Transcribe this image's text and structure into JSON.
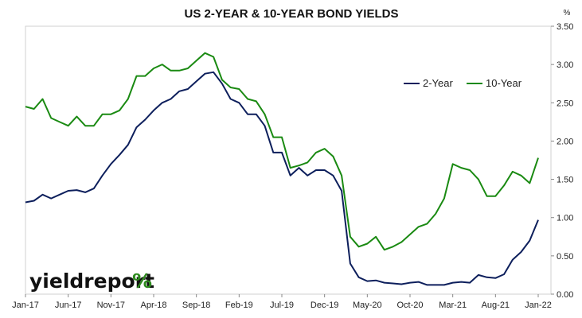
{
  "chart_data": {
    "type": "line",
    "title": "US 2-YEAR & 10-YEAR BOND YIELDS",
    "y_unit": "%",
    "ylim": [
      0,
      3.5
    ],
    "y_ticks": [
      "0.00",
      "0.50",
      "1.00",
      "1.50",
      "2.00",
      "2.50",
      "3.00",
      "3.50"
    ],
    "y_axis_side": "right",
    "grid": false,
    "legend_placement": "top-right",
    "x_ticks": [
      "Jan-17",
      "Jun-17",
      "Nov-17",
      "Apr-18",
      "Sep-18",
      "Feb-19",
      "Jul-19",
      "Dec-19",
      "May-20",
      "Oct-20",
      "Mar-21",
      "Aug-21",
      "Jan-22"
    ],
    "x": [
      "2017-01-01",
      "2017-02-01",
      "2017-03-01",
      "2017-04-01",
      "2017-05-01",
      "2017-06-01",
      "2017-07-01",
      "2017-08-01",
      "2017-09-01",
      "2017-10-01",
      "2017-11-01",
      "2017-12-01",
      "2018-01-01",
      "2018-02-01",
      "2018-03-01",
      "2018-04-01",
      "2018-05-01",
      "2018-06-01",
      "2018-07-01",
      "2018-08-01",
      "2018-09-01",
      "2018-10-01",
      "2018-11-01",
      "2018-12-01",
      "2019-01-01",
      "2019-02-01",
      "2019-03-01",
      "2019-04-01",
      "2019-05-01",
      "2019-06-01",
      "2019-07-01",
      "2019-08-01",
      "2019-09-01",
      "2019-10-01",
      "2019-11-01",
      "2019-12-01",
      "2020-01-01",
      "2020-02-01",
      "2020-03-01",
      "2020-04-01",
      "2020-05-01",
      "2020-06-01",
      "2020-07-01",
      "2020-08-01",
      "2020-09-01",
      "2020-10-01",
      "2020-11-01",
      "2020-12-01",
      "2021-01-01",
      "2021-02-01",
      "2021-03-01",
      "2021-04-01",
      "2021-05-01",
      "2021-06-01",
      "2021-07-01",
      "2021-08-01",
      "2021-09-01",
      "2021-10-01",
      "2021-11-01",
      "2021-12-01",
      "2022-01-01"
    ],
    "series": [
      {
        "name": "2-Year",
        "color": "#0d1f5c",
        "values": [
          1.2,
          1.22,
          1.3,
          1.25,
          1.3,
          1.35,
          1.36,
          1.33,
          1.38,
          1.55,
          1.7,
          1.82,
          1.95,
          2.18,
          2.28,
          2.4,
          2.5,
          2.55,
          2.65,
          2.68,
          2.78,
          2.88,
          2.9,
          2.75,
          2.55,
          2.5,
          2.35,
          2.35,
          2.2,
          1.85,
          1.85,
          1.55,
          1.65,
          1.55,
          1.62,
          1.62,
          1.55,
          1.35,
          0.4,
          0.22,
          0.17,
          0.18,
          0.15,
          0.14,
          0.13,
          0.15,
          0.16,
          0.12,
          0.12,
          0.12,
          0.15,
          0.16,
          0.15,
          0.25,
          0.22,
          0.21,
          0.26,
          0.45,
          0.55,
          0.7,
          0.97
        ]
      },
      {
        "name": "10-Year",
        "color": "#1a8a12",
        "values": [
          2.45,
          2.42,
          2.55,
          2.3,
          2.25,
          2.2,
          2.32,
          2.2,
          2.2,
          2.35,
          2.35,
          2.4,
          2.55,
          2.85,
          2.85,
          2.95,
          3.0,
          2.92,
          2.92,
          2.95,
          3.05,
          3.15,
          3.1,
          2.8,
          2.7,
          2.68,
          2.55,
          2.52,
          2.35,
          2.05,
          2.05,
          1.65,
          1.68,
          1.72,
          1.85,
          1.9,
          1.8,
          1.55,
          0.75,
          0.62,
          0.66,
          0.75,
          0.58,
          0.62,
          0.68,
          0.78,
          0.88,
          0.92,
          1.05,
          1.25,
          1.7,
          1.65,
          1.62,
          1.5,
          1.28,
          1.28,
          1.42,
          1.6,
          1.55,
          1.45,
          1.78
        ]
      }
    ]
  }
}
